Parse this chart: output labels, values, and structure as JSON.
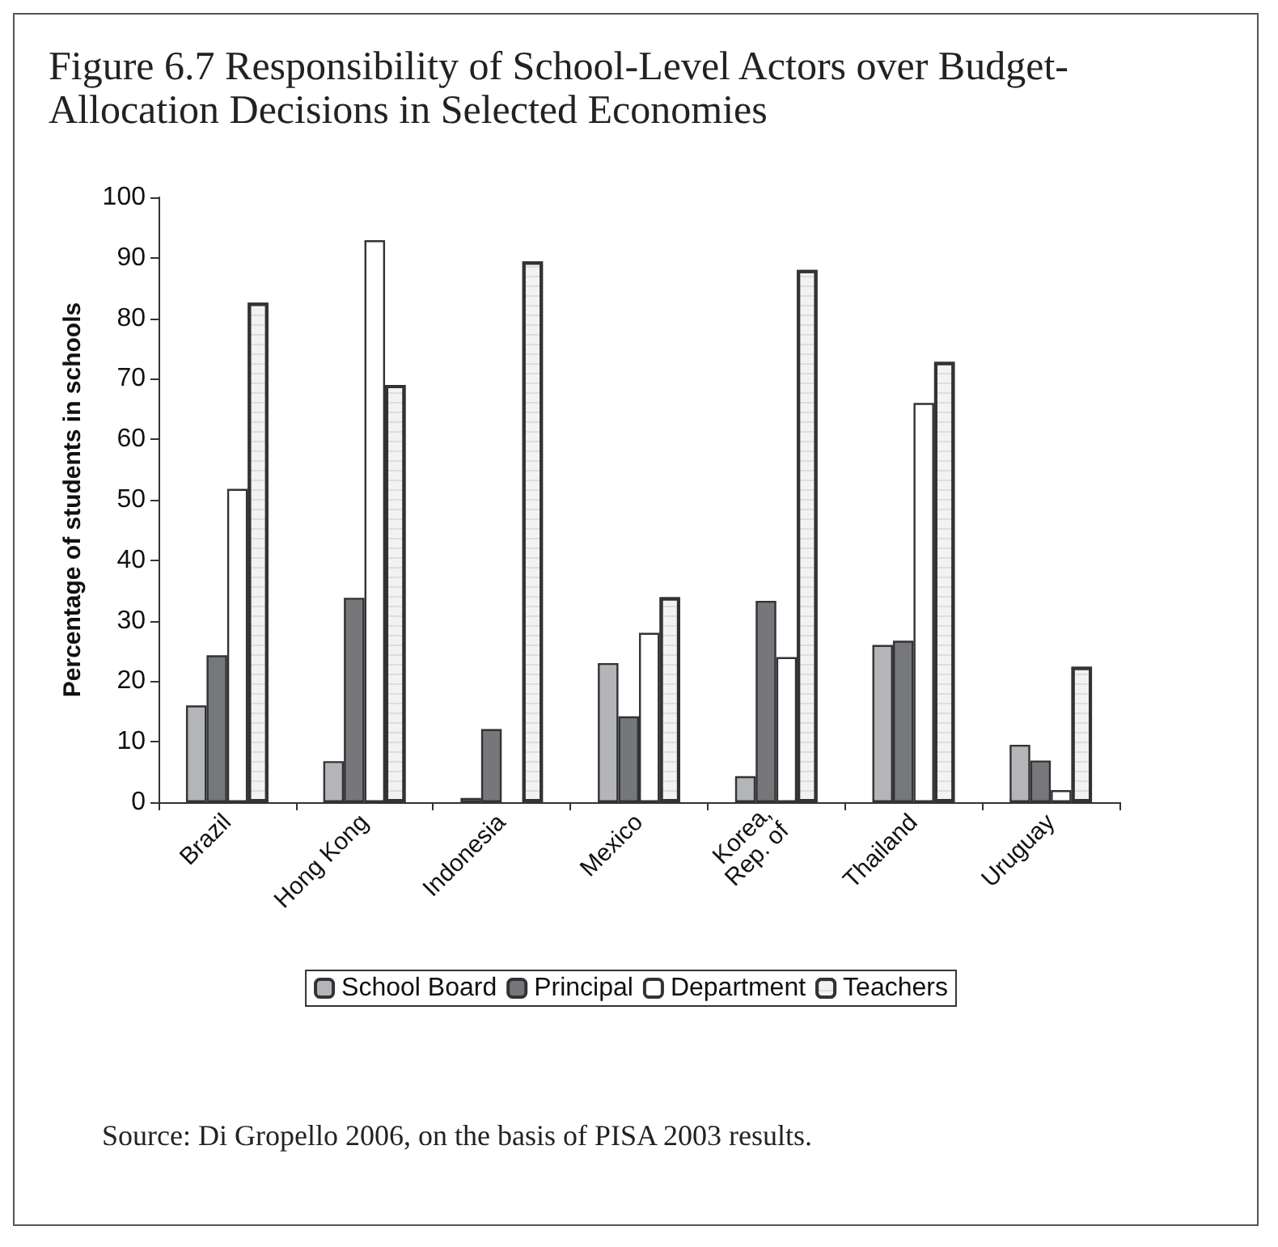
{
  "chart_data": {
    "type": "bar",
    "title": "Figure 6.7 Responsibility of School-Level Actors over Budget-Allocation Decisions in Selected Economies",
    "ylabel": "Percentage of students in schools",
    "categories": [
      "Brazil",
      "Hong Kong",
      "Indonesia",
      "Mexico",
      "Korea, Rep. of",
      "Thailand",
      "Uruguay"
    ],
    "series": [
      {
        "name": "School Board",
        "color": "#b3b5b8",
        "values": [
          16,
          6.8,
          0.7,
          23,
          4.3,
          26,
          9.5
        ]
      },
      {
        "name": "Principal",
        "color": "#76777b",
        "values": [
          24.3,
          33.8,
          12.1,
          14.2,
          33.3,
          26.7,
          6.9
        ]
      },
      {
        "name": "Department",
        "color": "#ffffff",
        "values": [
          51.8,
          92.9,
          null,
          28,
          24,
          66,
          2
        ]
      },
      {
        "name": "Teachers",
        "color": "#f2f2f2",
        "values": [
          82.6,
          69,
          89.4,
          33.9,
          88,
          72.8,
          22.4
        ]
      }
    ],
    "ylim": [
      0,
      100
    ],
    "yticks": [
      0,
      10,
      20,
      30,
      40,
      50,
      60,
      70,
      80,
      90,
      100
    ],
    "grid": false,
    "legend": "bottom",
    "annotations": [
      "Source: Di Gropello 2006, on the basis of PISA 2003 results."
    ]
  }
}
